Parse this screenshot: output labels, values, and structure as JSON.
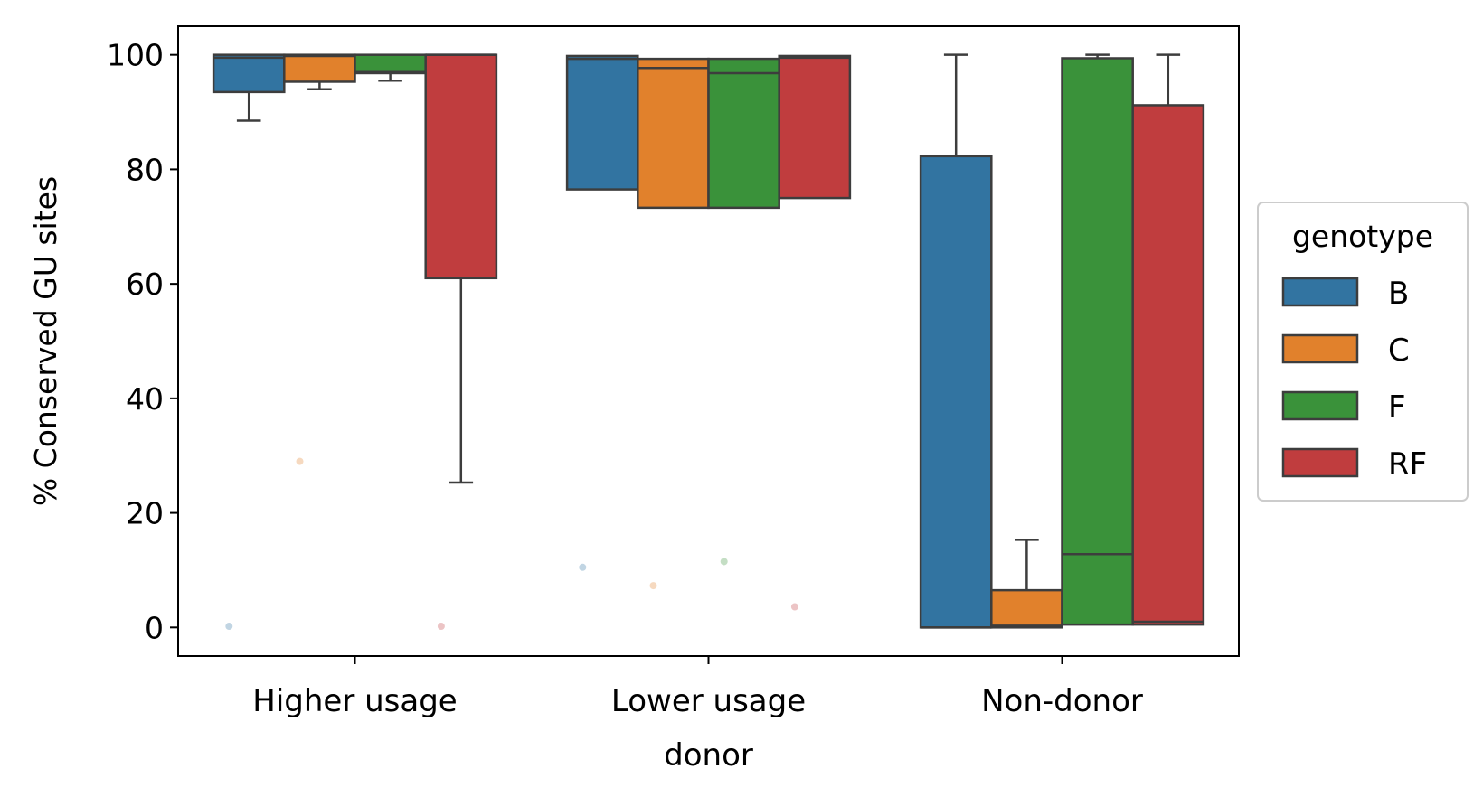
{
  "chart_data": {
    "type": "boxplot",
    "xlabel": "donor",
    "ylabel": "% Conserved GU sites",
    "ylim": [
      -5,
      105
    ],
    "yticks": [
      0,
      20,
      40,
      60,
      80,
      100
    ],
    "grid": false,
    "legend": {
      "title": "genotype",
      "placement": "outside-right"
    },
    "categories": [
      "Higher usage",
      "Lower usage",
      "Non-donor"
    ],
    "series": [
      {
        "name": "B",
        "color": "#3274a1",
        "boxes": [
          {
            "q1": 93.5,
            "median": 99.5,
            "q3": 100,
            "whisker_low": 88.5,
            "whisker_high": 100,
            "outliers": [
              0.2
            ]
          },
          {
            "q1": 76.5,
            "median": 99.3,
            "q3": 99.8,
            "whisker_low": 76.5,
            "whisker_high": 99.8,
            "outliers": [
              10.5
            ]
          },
          {
            "q1": 0,
            "median": 0,
            "q3": 82.3,
            "whisker_low": 0,
            "whisker_high": 100,
            "outliers": []
          }
        ]
      },
      {
        "name": "C",
        "color": "#e1812c",
        "boxes": [
          {
            "q1": 95.3,
            "median": 99.8,
            "q3": 100,
            "whisker_low": 94,
            "whisker_high": 100,
            "outliers": [
              29
            ]
          },
          {
            "q1": 73.3,
            "median": 97.7,
            "q3": 99.3,
            "whisker_low": 73.3,
            "whisker_high": 99.3,
            "outliers": [
              7.3
            ]
          },
          {
            "q1": 0,
            "median": 0.3,
            "q3": 6.5,
            "whisker_low": 0,
            "whisker_high": 15.3,
            "outliers": []
          }
        ]
      },
      {
        "name": "F",
        "color": "#3a923a",
        "boxes": [
          {
            "q1": 96.8,
            "median": 97,
            "q3": 100,
            "whisker_low": 95.5,
            "whisker_high": 100,
            "outliers": []
          },
          {
            "q1": 73.3,
            "median": 96.8,
            "q3": 99.3,
            "whisker_low": 73.3,
            "whisker_high": 99.3,
            "outliers": [
              11.5
            ]
          },
          {
            "q1": 0.5,
            "median": 12.8,
            "q3": 99.4,
            "whisker_low": 0.5,
            "whisker_high": 100,
            "outliers": []
          }
        ]
      },
      {
        "name": "RF",
        "color": "#c03d3e",
        "boxes": [
          {
            "q1": 61,
            "median": 100,
            "q3": 100,
            "whisker_low": 25.3,
            "whisker_high": 100,
            "outliers": [
              0.2
            ]
          },
          {
            "q1": 75,
            "median": 99.5,
            "q3": 99.8,
            "whisker_low": 75,
            "whisker_high": 99.8,
            "outliers": [
              3.6
            ]
          },
          {
            "q1": 0.5,
            "median": 1,
            "q3": 91.2,
            "whisker_low": 0.5,
            "whisker_high": 100,
            "outliers": []
          }
        ]
      }
    ]
  }
}
